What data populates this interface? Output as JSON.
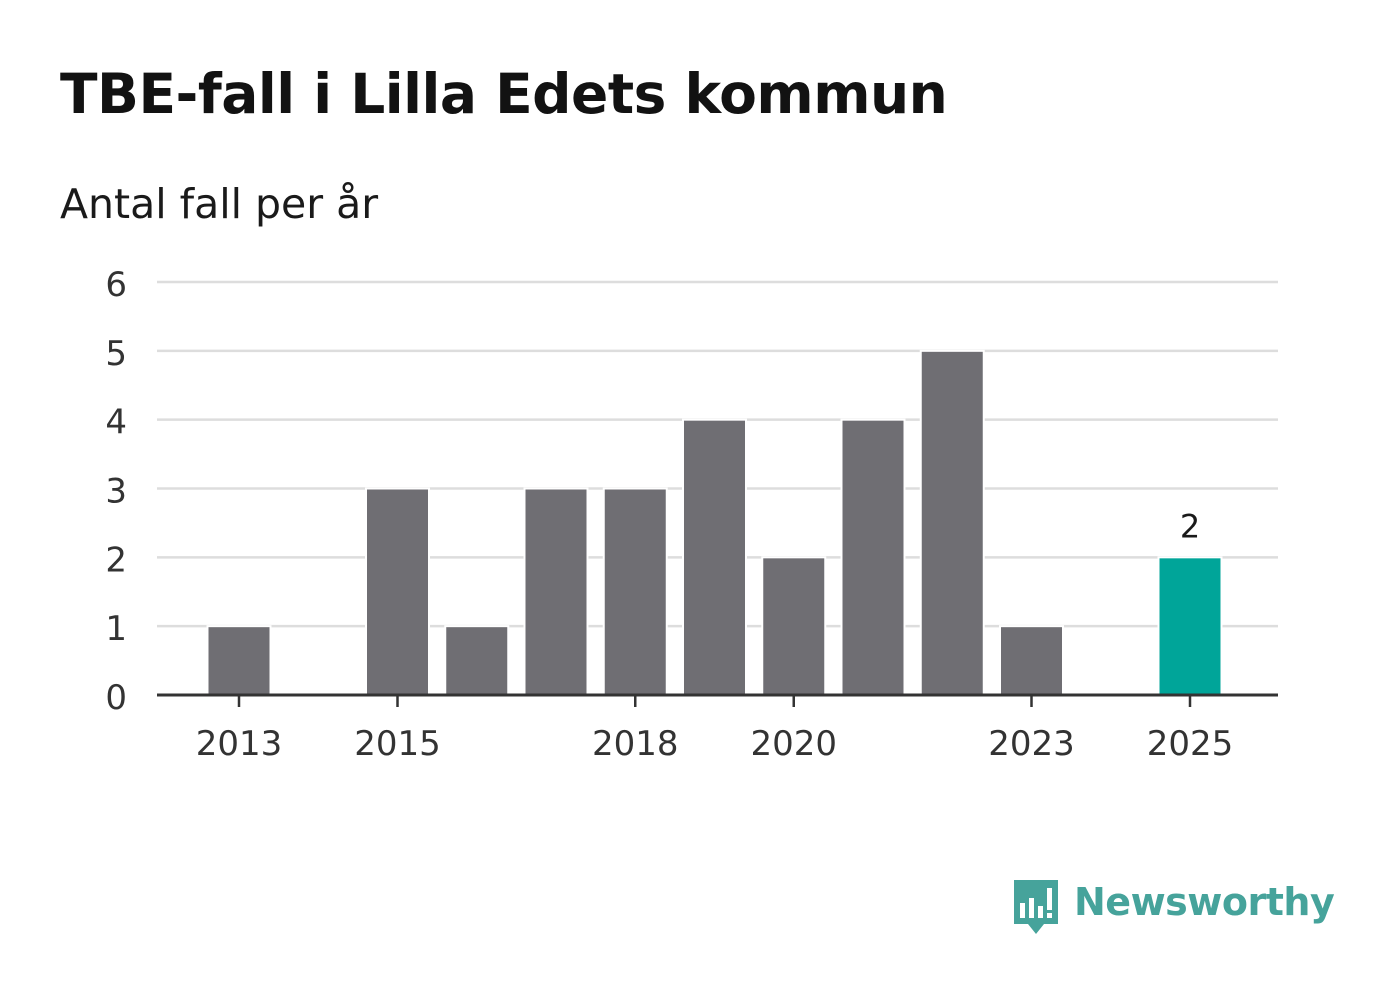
{
  "header": {
    "title": "TBE-fall i Lilla Edets kommun",
    "subtitle": "Antal fall per år"
  },
  "colors": {
    "bar": "#6f6e73",
    "highlight": "#00a599",
    "grid": "#dddddd",
    "axis": "#333333",
    "brand": "#46a39b"
  },
  "brand": {
    "name": "Newsworthy",
    "icon": "newsworthy-chart-bubble-icon"
  },
  "chart_data": {
    "type": "bar",
    "title": "TBE-fall i Lilla Edets kommun",
    "subtitle": "Antal fall per år",
    "xlabel": "",
    "ylabel": "",
    "categories": [
      "2013",
      "2014",
      "2015",
      "2016",
      "2017",
      "2018",
      "2019",
      "2020",
      "2021",
      "2022",
      "2023",
      "2024",
      "2025"
    ],
    "values": [
      1,
      0,
      3,
      1,
      3,
      3,
      4,
      2,
      4,
      5,
      1,
      0,
      2
    ],
    "highlight_category": "2025",
    "ylim": [
      0,
      6
    ],
    "yticks": [
      "0",
      "1",
      "2",
      "3",
      "4",
      "5",
      "6"
    ],
    "xtick_labels": [
      "2013",
      "2015",
      "2018",
      "2020",
      "2023",
      "2025"
    ],
    "data_labels": [
      {
        "category": "2025",
        "text": "2"
      }
    ],
    "grid": true
  }
}
